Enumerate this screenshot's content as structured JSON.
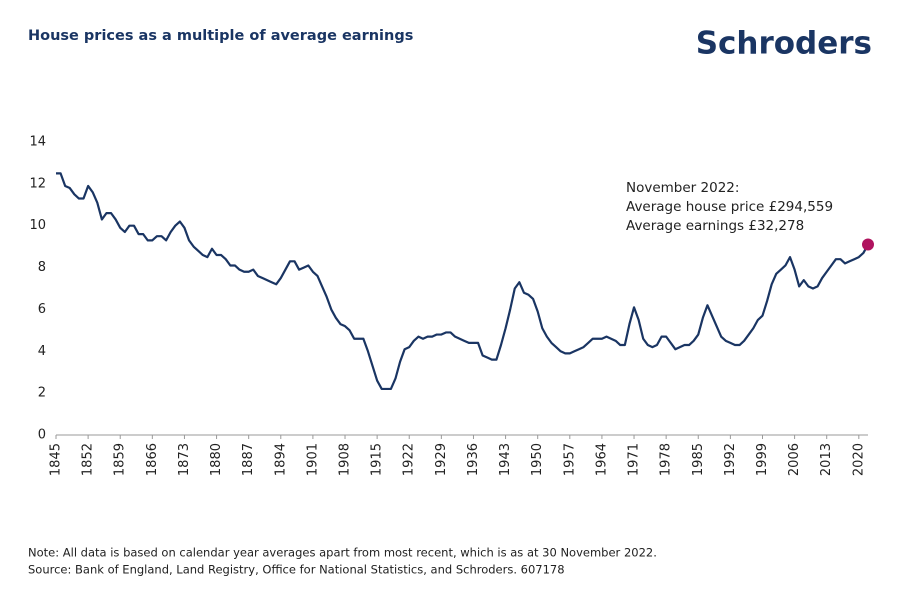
{
  "chart_data": {
    "type": "line",
    "title": "House prices as a multiple of average earnings",
    "logo": "Schroders",
    "annotation": [
      "November 2022:",
      "Average house price £294,559",
      "Average earnings  £32,278"
    ],
    "notes": [
      "Note: All data is based on calendar year averages apart from most recent, which is as at 30 November 2022.",
      "Source: Bank of England, Land Registry, Office for National Statistics, and Schroders. 607178"
    ],
    "x": [
      1845,
      1846,
      1847,
      1848,
      1849,
      1850,
      1851,
      1852,
      1853,
      1854,
      1855,
      1856,
      1857,
      1858,
      1859,
      1860,
      1861,
      1862,
      1863,
      1864,
      1865,
      1866,
      1867,
      1868,
      1869,
      1870,
      1871,
      1872,
      1873,
      1874,
      1875,
      1876,
      1877,
      1878,
      1879,
      1880,
      1881,
      1882,
      1883,
      1884,
      1885,
      1886,
      1887,
      1888,
      1889,
      1890,
      1891,
      1892,
      1893,
      1894,
      1895,
      1896,
      1897,
      1898,
      1899,
      1900,
      1901,
      1902,
      1903,
      1904,
      1905,
      1906,
      1907,
      1908,
      1909,
      1910,
      1911,
      1912,
      1913,
      1914,
      1915,
      1916,
      1917,
      1918,
      1919,
      1920,
      1921,
      1922,
      1923,
      1924,
      1925,
      1926,
      1927,
      1928,
      1929,
      1930,
      1931,
      1932,
      1933,
      1934,
      1935,
      1936,
      1937,
      1938,
      1939,
      1940,
      1941,
      1942,
      1943,
      1944,
      1945,
      1946,
      1947,
      1948,
      1949,
      1950,
      1951,
      1952,
      1953,
      1954,
      1955,
      1956,
      1957,
      1958,
      1959,
      1960,
      1961,
      1962,
      1963,
      1964,
      1965,
      1966,
      1967,
      1968,
      1969,
      1970,
      1971,
      1972,
      1973,
      1974,
      1975,
      1976,
      1977,
      1978,
      1979,
      1980,
      1981,
      1982,
      1983,
      1984,
      1985,
      1986,
      1987,
      1988,
      1989,
      1990,
      1991,
      1992,
      1993,
      1994,
      1995,
      1996,
      1997,
      1998,
      1999,
      2000,
      2001,
      2002,
      2003,
      2004,
      2005,
      2006,
      2007,
      2008,
      2009,
      2010,
      2011,
      2012,
      2013,
      2014,
      2015,
      2016,
      2017,
      2018,
      2019,
      2020,
      2021,
      2022
    ],
    "series": [
      {
        "name": "House price to earnings ratio",
        "color": "#1a3563",
        "highlight_color": "#b0135f",
        "values": [
          12.5,
          12.5,
          11.9,
          11.8,
          11.5,
          11.3,
          11.3,
          11.9,
          11.6,
          11.1,
          10.3,
          10.6,
          10.6,
          10.3,
          9.9,
          9.7,
          10.0,
          10.0,
          9.6,
          9.6,
          9.3,
          9.3,
          9.5,
          9.5,
          9.3,
          9.7,
          10.0,
          10.2,
          9.9,
          9.3,
          9.0,
          8.8,
          8.6,
          8.5,
          8.9,
          8.6,
          8.6,
          8.4,
          8.1,
          8.1,
          7.9,
          7.8,
          7.8,
          7.9,
          7.6,
          7.5,
          7.4,
          7.3,
          7.2,
          7.5,
          7.9,
          8.3,
          8.3,
          7.9,
          8.0,
          8.1,
          7.8,
          7.6,
          7.1,
          6.6,
          6.0,
          5.6,
          5.3,
          5.2,
          5.0,
          4.6,
          4.6,
          4.6,
          4.0,
          3.3,
          2.6,
          2.2,
          2.2,
          2.2,
          2.7,
          3.5,
          4.1,
          4.2,
          4.5,
          4.7,
          4.6,
          4.7,
          4.7,
          4.8,
          4.8,
          4.9,
          4.9,
          4.7,
          4.6,
          4.5,
          4.4,
          4.4,
          4.4,
          3.8,
          3.7,
          3.6,
          3.6,
          4.3,
          5.1,
          6.0,
          7.0,
          7.3,
          6.8,
          6.7,
          6.5,
          5.9,
          5.1,
          4.7,
          4.4,
          4.2,
          4.0,
          3.9,
          3.9,
          4.0,
          4.1,
          4.2,
          4.4,
          4.6,
          4.6,
          4.6,
          4.7,
          4.6,
          4.5,
          4.3,
          4.3,
          5.3,
          6.1,
          5.5,
          4.6,
          4.3,
          4.2,
          4.3,
          4.7,
          4.7,
          4.4,
          4.1,
          4.2,
          4.3,
          4.3,
          4.5,
          4.8,
          5.6,
          6.2,
          5.7,
          5.2,
          4.7,
          4.5,
          4.4,
          4.3,
          4.3,
          4.5,
          4.8,
          5.1,
          5.5,
          5.7,
          6.4,
          7.2,
          7.7,
          7.9,
          8.1,
          8.5,
          7.9,
          7.1,
          7.4,
          7.1,
          7.0,
          7.1,
          7.5,
          7.8,
          8.1,
          8.4,
          8.4,
          8.2,
          8.3,
          8.4,
          8.5,
          8.7,
          9.1
        ]
      }
    ],
    "xlim": [
      1845,
      2022
    ],
    "xticks": [
      1845,
      1852,
      1859,
      1866,
      1873,
      1880,
      1887,
      1894,
      1901,
      1908,
      1915,
      1922,
      1929,
      1936,
      1943,
      1950,
      1957,
      1964,
      1971,
      1978,
      1985,
      1992,
      1999,
      2006,
      2013,
      2020
    ],
    "ylim": [
      0,
      14
    ],
    "yticks": [
      0,
      2,
      4,
      6,
      8,
      10,
      12,
      14
    ],
    "grid": false
  }
}
